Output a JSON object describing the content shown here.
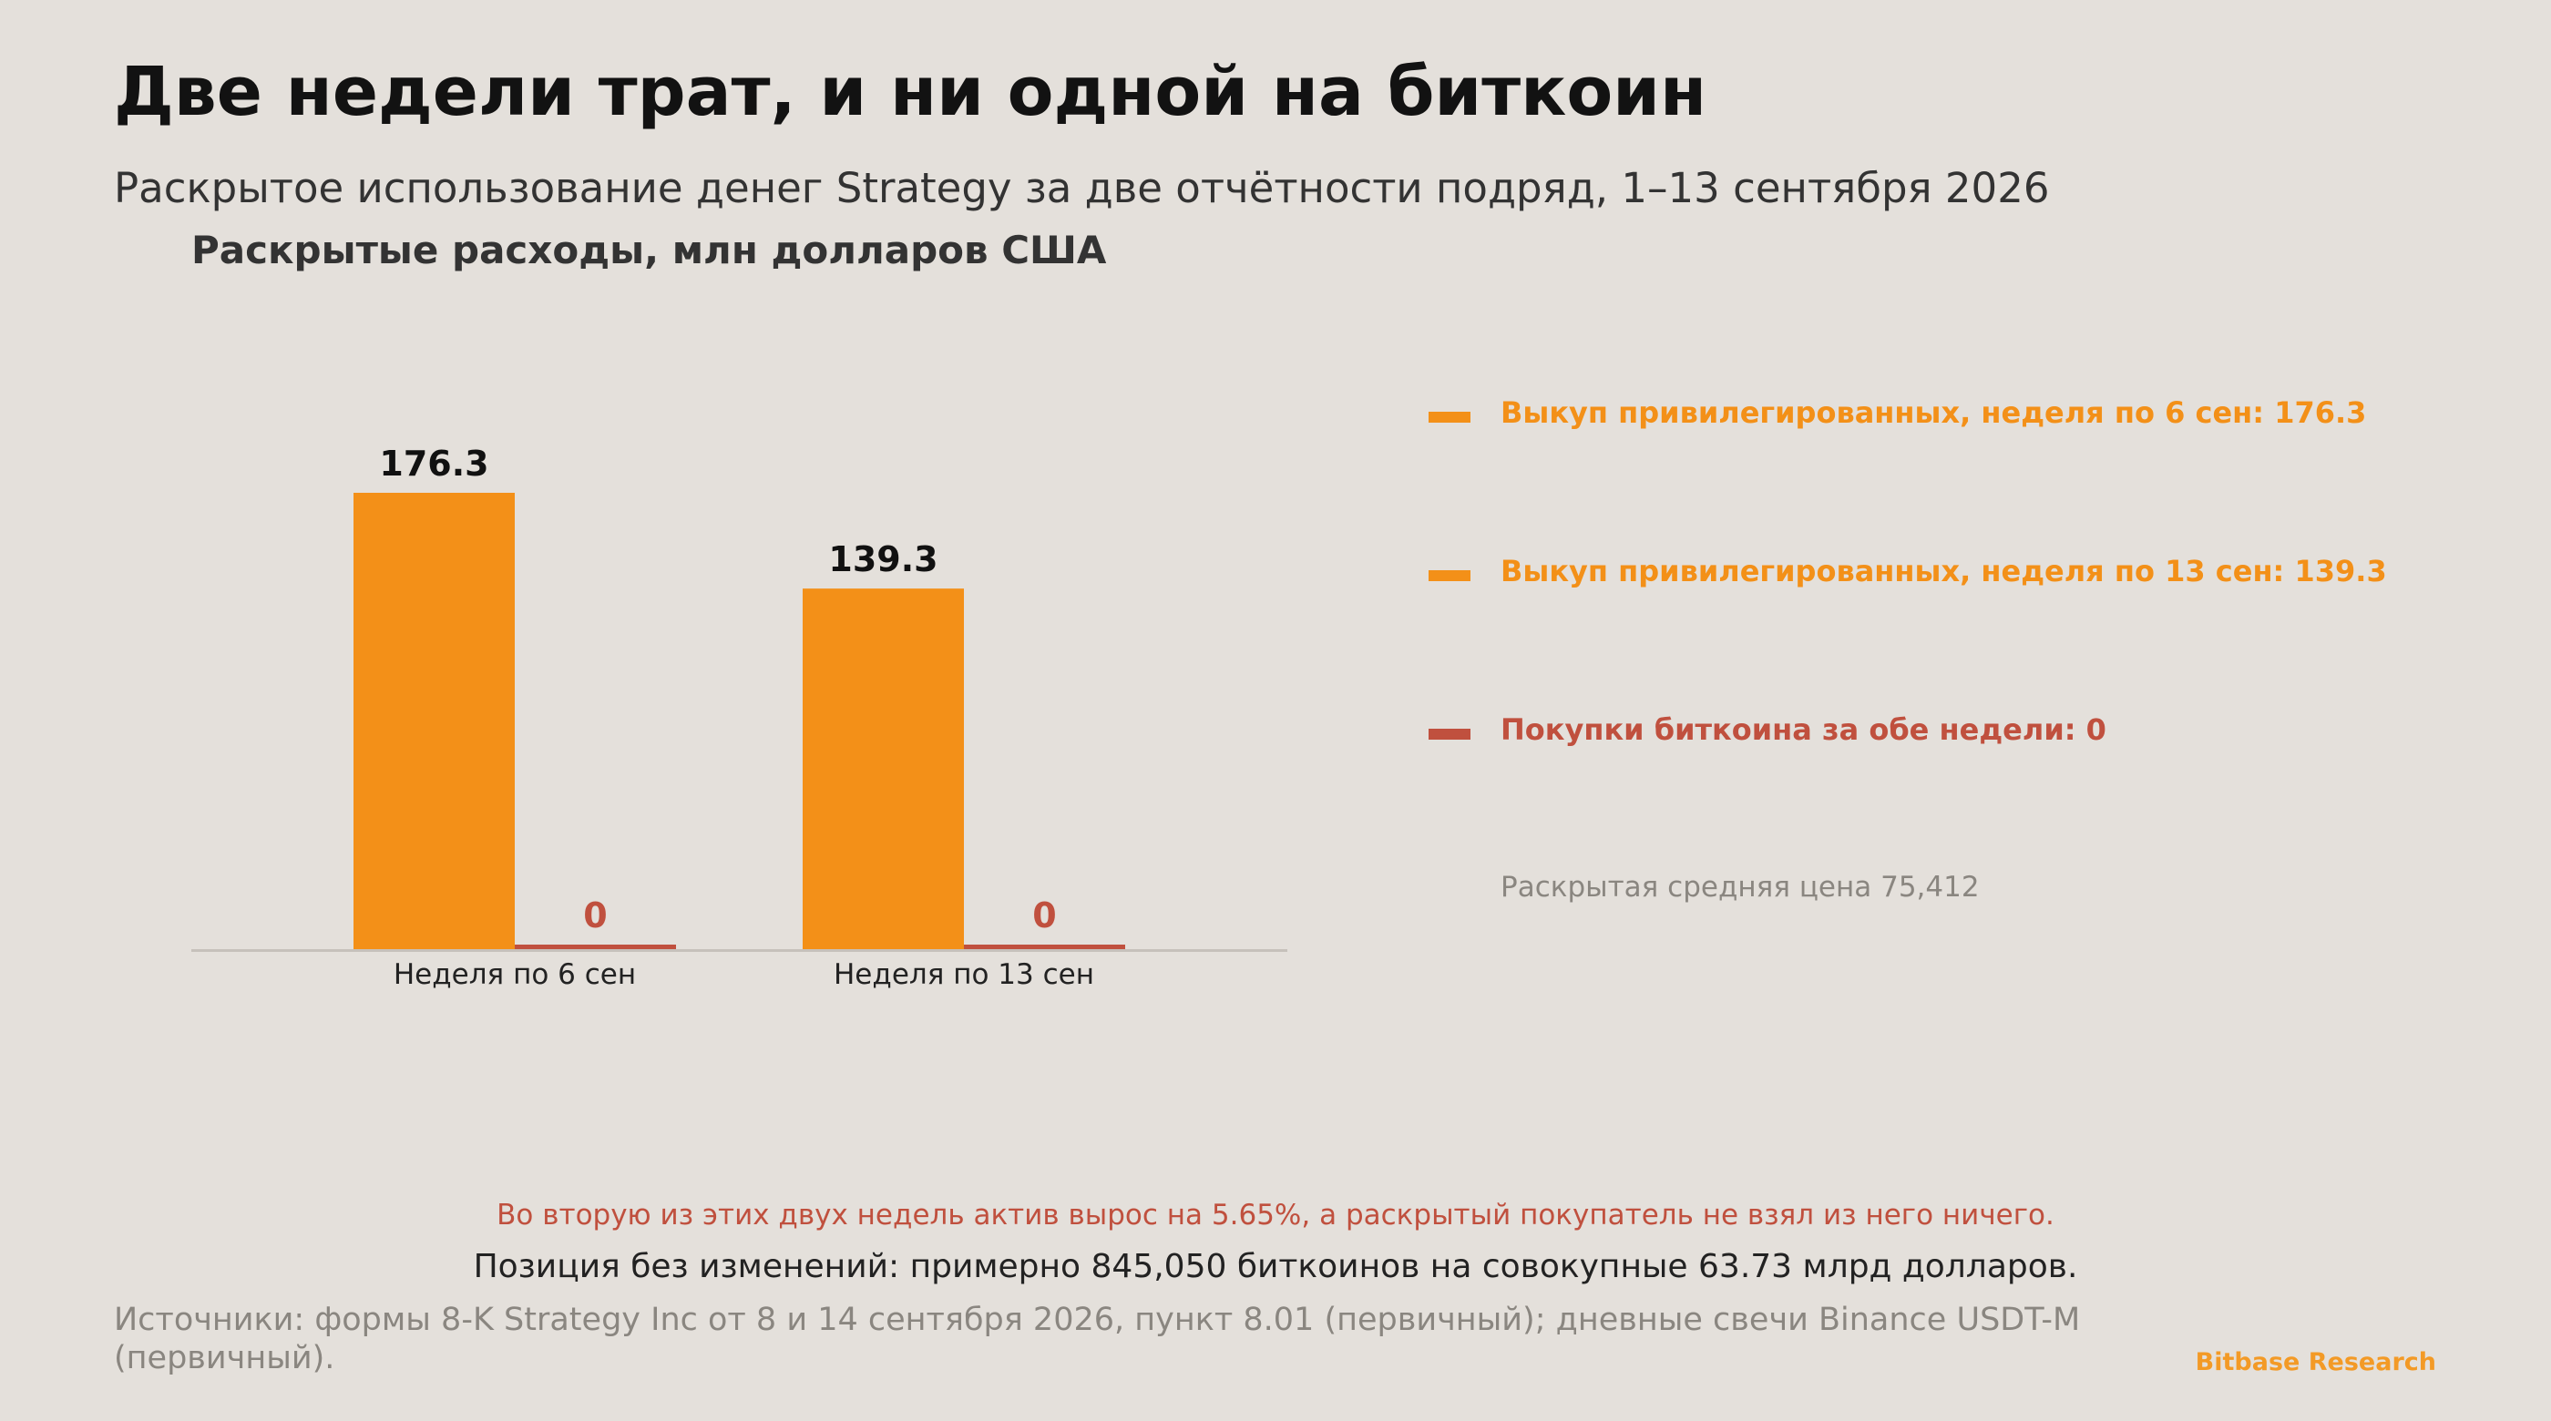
{
  "header": {
    "title": "Две недели трат, и ни одной на биткоин",
    "subtitle": "Раскрытое использование денег Strategy за две отчётности подряд, 1–13 сентября 2026"
  },
  "chart_data": {
    "type": "bar",
    "ylabel": "Раскрытые расходы, млн долларов США",
    "categories": [
      "Неделя по 6 сен",
      "Неделя по 13 сен"
    ],
    "series": [
      {
        "values": [
          176.3,
          139.3
        ],
        "labels": [
          "176.3",
          "139.3"
        ],
        "color": "#f39018"
      },
      {
        "values": [
          0,
          0
        ],
        "labels": [
          "0",
          "0"
        ],
        "color": "#c0503e"
      }
    ],
    "ylim": [
      0,
      176.3
    ],
    "grid": false,
    "legend_position": "right"
  },
  "legend": {
    "items": [
      {
        "label": "Выкуп привилегированных, неделя по 6 сен: 176.3",
        "color": "#f39018"
      },
      {
        "label": "Выкуп привилегированных, неделя по 13 сен: 139.3",
        "color": "#f39018"
      },
      {
        "label": "Покупки биткоина за обе недели: 0",
        "color": "#c0503e"
      }
    ],
    "note": "Раскрытая средняя цена 75,412"
  },
  "footer": {
    "note_red": "Во вторую из этих двух недель актив вырос на 5.65%, а раскрытый покупатель не взял из него ничего.",
    "note_dark": "Позиция без изменений: примерно 845,050 биткоинов на совокупные 63.73 млрд долларов.",
    "sources": "Источники: формы 8-K Strategy Inc от 8 и 14 сентября 2026, пункт 8.01 (первичный); дневные свечи Binance USDT-M (первичный).",
    "brand": "Bitbase Research"
  }
}
